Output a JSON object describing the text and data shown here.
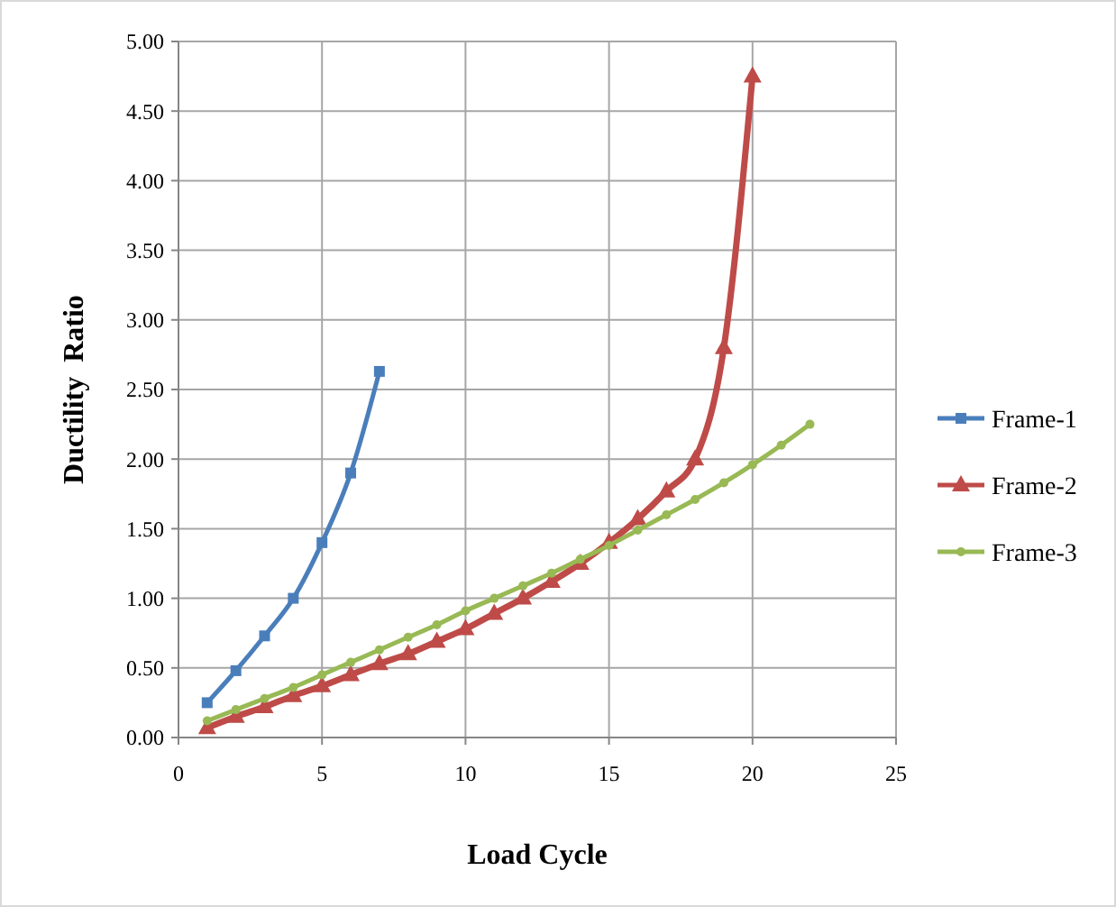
{
  "chart_data": {
    "type": "line",
    "xlabel": "Load Cycle",
    "ylabel": "Ductility  Ratio",
    "xlim": [
      0,
      25
    ],
    "ylim": [
      0,
      5
    ],
    "xticks": [
      0,
      5,
      10,
      15,
      20,
      25
    ],
    "yticks": [
      {
        "value": 0,
        "label": "0.00"
      },
      {
        "value": 0.5,
        "label": "0.50"
      },
      {
        "value": 1,
        "label": "1.00"
      },
      {
        "value": 1.5,
        "label": "1.50"
      },
      {
        "value": 2,
        "label": "2.00"
      },
      {
        "value": 2.5,
        "label": "2.50"
      },
      {
        "value": 3,
        "label": "3.00"
      },
      {
        "value": 3.5,
        "label": "3.50"
      },
      {
        "value": 4,
        "label": "4.00"
      },
      {
        "value": 4.5,
        "label": "4.50"
      },
      {
        "value": 5,
        "label": "5.00"
      }
    ],
    "grid": true,
    "legend": "right",
    "line_style": "solid",
    "series": [
      {
        "name": "Frame-1",
        "color": "#4a7ebb",
        "marker": "square",
        "x": [
          1,
          2,
          3,
          4,
          5,
          6,
          7
        ],
        "values": [
          0.25,
          0.48,
          0.73,
          1.0,
          1.4,
          1.9,
          2.63
        ]
      },
      {
        "name": "Frame-2",
        "color": "#be4b48",
        "marker": "triangle",
        "x": [
          1,
          2,
          3,
          4,
          5,
          6,
          7,
          8,
          9,
          10,
          11,
          12,
          13,
          14,
          15,
          16,
          17,
          18,
          19,
          20
        ],
        "values": [
          0.07,
          0.15,
          0.22,
          0.3,
          0.37,
          0.45,
          0.53,
          0.6,
          0.69,
          0.78,
          0.89,
          1.0,
          1.12,
          1.25,
          1.4,
          1.57,
          1.77,
          2.0,
          2.8,
          4.75
        ]
      },
      {
        "name": "Frame-3",
        "color": "#98b954",
        "marker": "circle",
        "x": [
          1,
          2,
          3,
          4,
          5,
          6,
          7,
          8,
          9,
          10,
          11,
          12,
          13,
          14,
          15,
          16,
          17,
          18,
          19,
          20,
          21,
          22
        ],
        "values": [
          0.12,
          0.2,
          0.28,
          0.36,
          0.45,
          0.54,
          0.63,
          0.72,
          0.81,
          0.91,
          1.0,
          1.09,
          1.18,
          1.28,
          1.38,
          1.49,
          1.6,
          1.71,
          1.83,
          1.96,
          2.1,
          2.25
        ]
      }
    ]
  }
}
